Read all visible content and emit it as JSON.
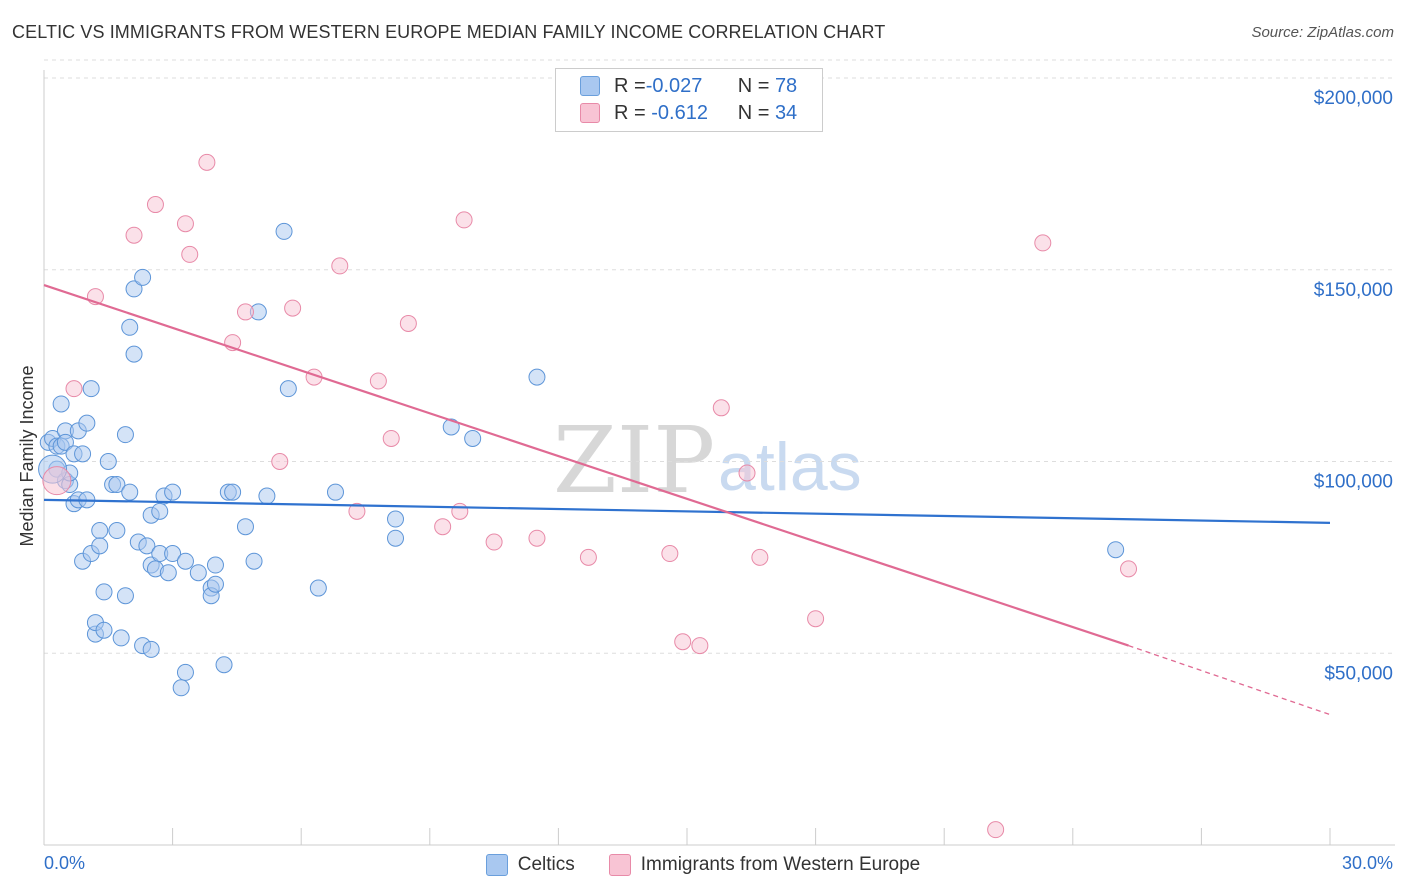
{
  "title": "CELTIC VS IMMIGRANTS FROM WESTERN EUROPE MEDIAN FAMILY INCOME CORRELATION CHART",
  "source": "Source: ZipAtlas.com",
  "watermark": {
    "zip": "ZIP",
    "atlas": "atlas"
  },
  "legend": [
    {
      "r_label": "R = ",
      "r_value": "-0.027",
      "n_label": "N = ",
      "n_value": "78",
      "color": "#a9c8f0",
      "border": "#6a9fdc"
    },
    {
      "r_label": "R = ",
      "r_value": " -0.612",
      "n_label": "N = ",
      "n_value": "34",
      "color": "#f8c4d4",
      "border": "#e88aa8"
    }
  ],
  "chart_data": {
    "type": "scatter",
    "title": "CELTIC VS IMMIGRANTS FROM WESTERN EUROPE MEDIAN FAMILY INCOME CORRELATION CHART",
    "xlabel": "",
    "ylabel": "Median Family Income",
    "xlim": [
      0,
      30
    ],
    "ylim": [
      0,
      200000
    ],
    "x_tick_labels": [
      "0.0%",
      "30.0%"
    ],
    "y_ticks": [
      50000,
      100000,
      150000,
      200000
    ],
    "y_tick_labels": [
      "$50,000",
      "$100,000",
      "$150,000",
      "$200,000"
    ],
    "series": [
      {
        "name": "Celtics",
        "color": "#a9c8f0",
        "edge": "#5d95d8",
        "line_color": "#2f72cf",
        "trend": {
          "x0": 0,
          "y0": 90000,
          "x1": 30,
          "y1": 84000
        },
        "points": [
          [
            0.1,
            105000
          ],
          [
            0.2,
            106000
          ],
          [
            0.3,
            98000
          ],
          [
            0.3,
            104000
          ],
          [
            0.4,
            104000
          ],
          [
            0.4,
            115000
          ],
          [
            0.5,
            108000
          ],
          [
            0.5,
            105000
          ],
          [
            0.5,
            95000
          ],
          [
            0.6,
            94000
          ],
          [
            0.6,
            97000
          ],
          [
            0.7,
            102000
          ],
          [
            0.7,
            89000
          ],
          [
            0.8,
            108000
          ],
          [
            0.8,
            90000
          ],
          [
            0.9,
            102000
          ],
          [
            0.9,
            74000
          ],
          [
            1.0,
            110000
          ],
          [
            1.0,
            90000
          ],
          [
            1.1,
            76000
          ],
          [
            1.1,
            119000
          ],
          [
            1.2,
            55000
          ],
          [
            1.2,
            58000
          ],
          [
            1.3,
            82000
          ],
          [
            1.3,
            78000
          ],
          [
            1.4,
            66000
          ],
          [
            1.4,
            56000
          ],
          [
            1.5,
            100000
          ],
          [
            1.6,
            94000
          ],
          [
            1.7,
            82000
          ],
          [
            1.7,
            94000
          ],
          [
            1.8,
            54000
          ],
          [
            1.9,
            107000
          ],
          [
            1.9,
            65000
          ],
          [
            2.0,
            135000
          ],
          [
            2.0,
            92000
          ],
          [
            2.1,
            128000
          ],
          [
            2.1,
            145000
          ],
          [
            2.2,
            79000
          ],
          [
            2.3,
            148000
          ],
          [
            2.3,
            52000
          ],
          [
            2.4,
            78000
          ],
          [
            2.5,
            73000
          ],
          [
            2.5,
            51000
          ],
          [
            2.5,
            86000
          ],
          [
            2.6,
            72000
          ],
          [
            2.7,
            76000
          ],
          [
            2.7,
            87000
          ],
          [
            2.8,
            91000
          ],
          [
            2.9,
            71000
          ],
          [
            3.0,
            76000
          ],
          [
            3.0,
            92000
          ],
          [
            3.2,
            41000
          ],
          [
            3.3,
            45000
          ],
          [
            3.3,
            74000
          ],
          [
            3.6,
            71000
          ],
          [
            3.9,
            67000
          ],
          [
            3.9,
            65000
          ],
          [
            4.0,
            73000
          ],
          [
            4.0,
            68000
          ],
          [
            4.2,
            47000
          ],
          [
            4.3,
            92000
          ],
          [
            4.4,
            92000
          ],
          [
            4.7,
            83000
          ],
          [
            4.9,
            74000
          ],
          [
            5.0,
            139000
          ],
          [
            5.2,
            91000
          ],
          [
            5.6,
            160000
          ],
          [
            5.7,
            119000
          ],
          [
            6.4,
            67000
          ],
          [
            6.8,
            92000
          ],
          [
            8.2,
            85000
          ],
          [
            8.2,
            80000
          ],
          [
            9.5,
            109000
          ],
          [
            10.0,
            106000
          ],
          [
            11.5,
            122000
          ],
          [
            25.0,
            77000
          ],
          [
            0.2,
            98000
          ]
        ]
      },
      {
        "name": "Immigrants from Western Europe",
        "color": "#f8c4d4",
        "edge": "#e88aa8",
        "line_color": "#e06a93",
        "trend": {
          "x0": 0,
          "y0": 146000,
          "x1": 25.3,
          "y1": 52000
        },
        "trend_ext": {
          "x0": 25.3,
          "y0": 52000,
          "x1": 30,
          "y1": 34000
        },
        "points": [
          [
            0.3,
            95000
          ],
          [
            0.7,
            119000
          ],
          [
            1.2,
            143000
          ],
          [
            2.1,
            159000
          ],
          [
            2.6,
            167000
          ],
          [
            3.3,
            162000
          ],
          [
            3.4,
            154000
          ],
          [
            3.8,
            178000
          ],
          [
            4.4,
            131000
          ],
          [
            4.7,
            139000
          ],
          [
            5.5,
            100000
          ],
          [
            5.8,
            140000
          ],
          [
            6.3,
            122000
          ],
          [
            6.9,
            151000
          ],
          [
            7.3,
            87000
          ],
          [
            7.8,
            121000
          ],
          [
            8.1,
            106000
          ],
          [
            8.5,
            136000
          ],
          [
            9.3,
            83000
          ],
          [
            9.7,
            87000
          ],
          [
            9.8,
            163000
          ],
          [
            10.5,
            79000
          ],
          [
            11.5,
            80000
          ],
          [
            12.7,
            75000
          ],
          [
            14.6,
            76000
          ],
          [
            14.9,
            53000
          ],
          [
            15.3,
            52000
          ],
          [
            15.8,
            114000
          ],
          [
            16.4,
            97000
          ],
          [
            16.7,
            75000
          ],
          [
            18.0,
            59000
          ],
          [
            22.2,
            4000
          ],
          [
            23.3,
            157000
          ],
          [
            25.3,
            72000
          ]
        ]
      }
    ]
  },
  "bottom_legend": [
    {
      "label": "Celtics",
      "color": "#a9c8f0",
      "border": "#6a9fdc"
    },
    {
      "label": "Immigrants from Western Europe",
      "color": "#f8c4d4",
      "border": "#e88aa8"
    }
  ]
}
